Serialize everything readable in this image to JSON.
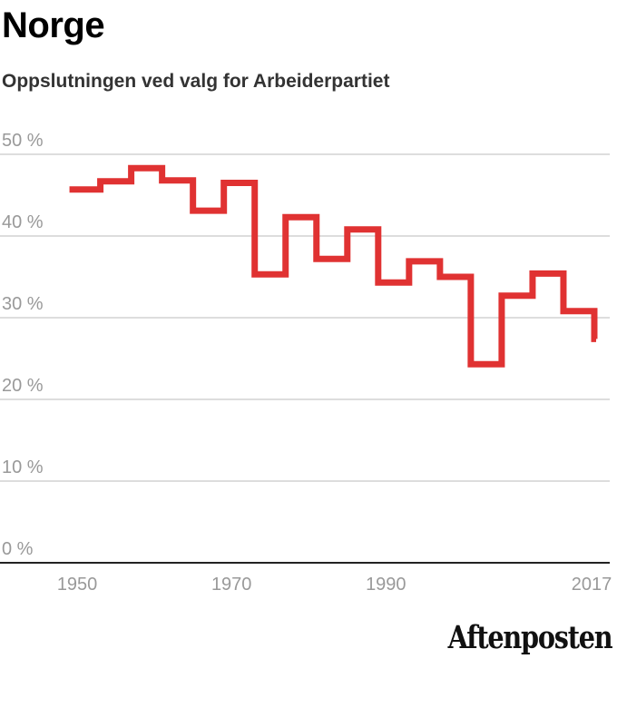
{
  "header": {
    "title": "Norge",
    "subtitle": "Oppslutningen ved valg for Arbeiderpartiet"
  },
  "branding": {
    "logo_text": "Aftenposten"
  },
  "chart_data": {
    "type": "line",
    "step": true,
    "x": [
      1949,
      1953,
      1957,
      1961,
      1965,
      1969,
      1973,
      1977,
      1981,
      1985,
      1989,
      1993,
      1997,
      2001,
      2005,
      2009,
      2013,
      2017
    ],
    "values": [
      45.7,
      46.7,
      48.3,
      46.8,
      43.1,
      46.5,
      35.3,
      42.3,
      37.2,
      40.8,
      34.3,
      36.9,
      35.0,
      24.3,
      32.7,
      35.4,
      30.8,
      27.4
    ],
    "xlim": [
      1940,
      2019
    ],
    "ylim": [
      0,
      50
    ],
    "x_ticks": [
      "1950",
      "1970",
      "1990",
      "2017"
    ],
    "x_tick_values": [
      1950,
      1970,
      1990,
      2017
    ],
    "y_ticks": [
      "0 %",
      "10 %",
      "20 %",
      "30 %",
      "40 %",
      "50 %"
    ],
    "y_tick_values": [
      0,
      10,
      20,
      30,
      40,
      50
    ],
    "grid": true,
    "line_color": "#e03232",
    "grid_color": "#dddddd",
    "label_color": "#999999"
  }
}
